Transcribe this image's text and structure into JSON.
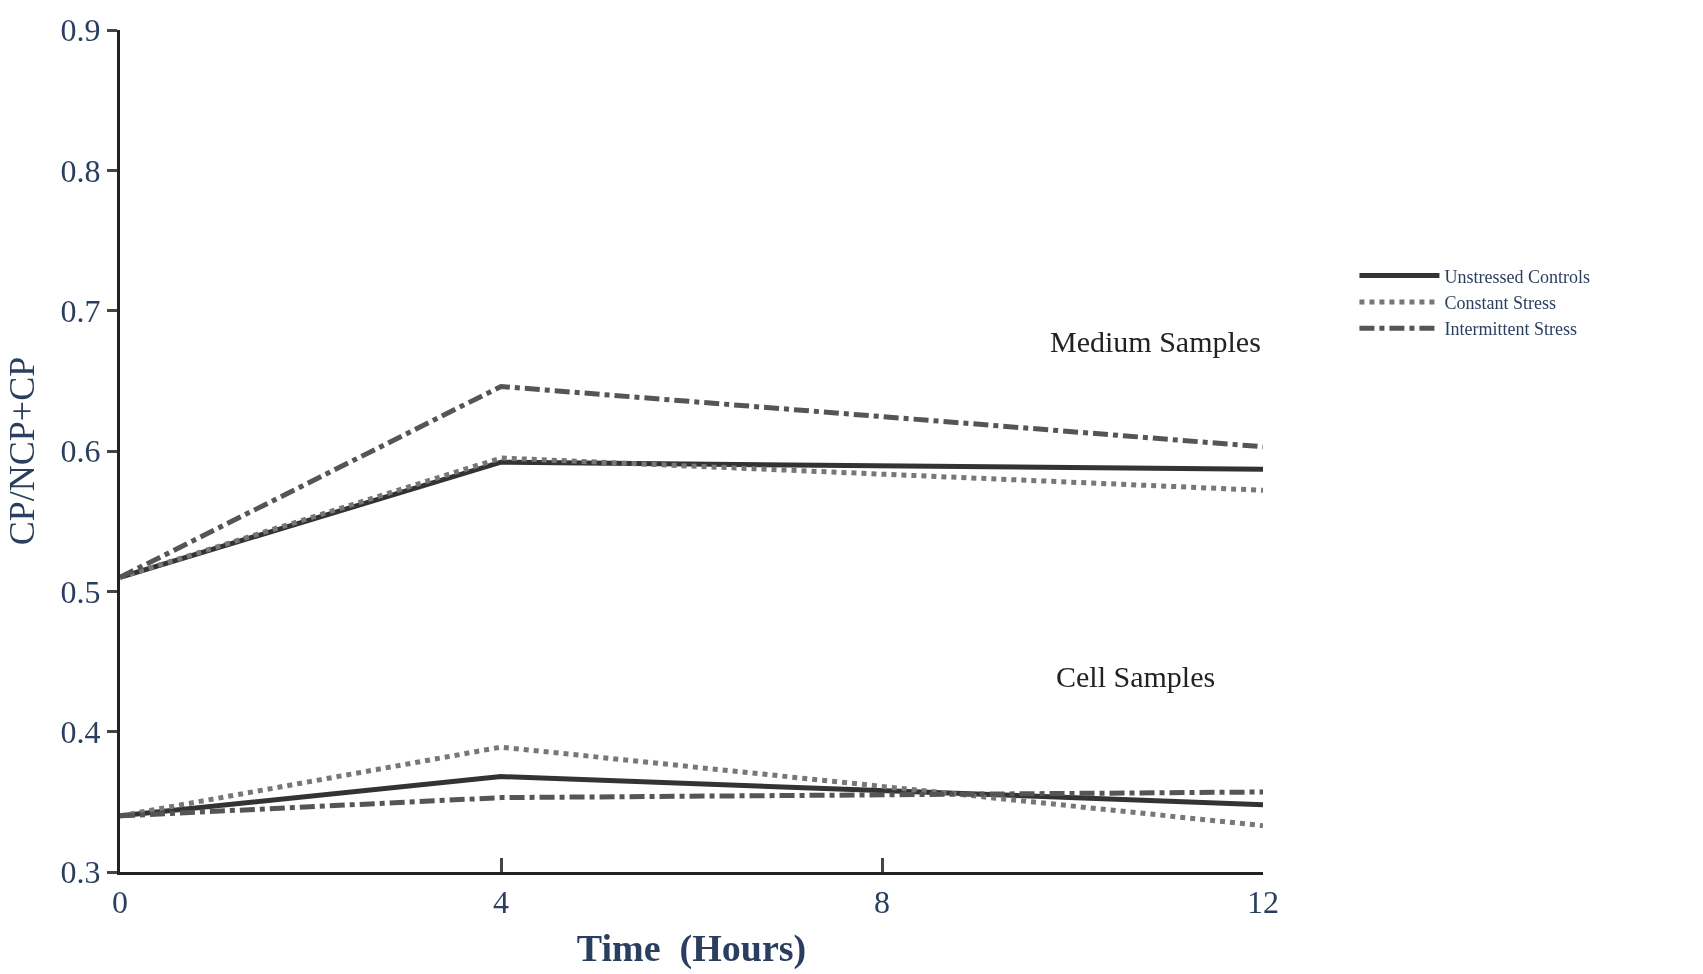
{
  "chart_data": {
    "type": "line",
    "xlabel": "Time  (Hours)",
    "ylabel": "CP/NCP+CP",
    "x": [
      0,
      4,
      12
    ],
    "series": [
      {
        "name": "Unstressed Controls",
        "color": "#333333",
        "line_style": "solid",
        "values": [
          0.51,
          0.592,
          0.587
        ]
      },
      {
        "name": "Constant Stress",
        "color": "#777777",
        "line_style": "dotted",
        "values": [
          0.51,
          0.595,
          0.572
        ]
      },
      {
        "name": "Intermittent Stress",
        "color": "#555555",
        "line_style": "dashed",
        "values": [
          0.51,
          0.646,
          0.603
        ]
      },
      {
        "color": "#333333",
        "line_style": "solid",
        "values": [
          0.34,
          0.368,
          0.348
        ]
      },
      {
        "color": "#777777",
        "line_style": "dotted",
        "values": [
          0.34,
          0.389,
          0.333
        ]
      },
      {
        "color": "#555555",
        "line_style": "dashed",
        "values": [
          0.34,
          0.353,
          0.357
        ]
      }
    ],
    "annotations": [
      "Medium Samples",
      "Cell Samples"
    ],
    "xlim": [
      0,
      12
    ],
    "xticks": [
      0,
      4,
      8,
      12
    ],
    "ylim": [
      0.3,
      0.9
    ],
    "yticks": [
      0.3,
      0.4,
      0.5,
      0.6,
      0.7,
      0.8,
      0.9
    ],
    "legend": "right",
    "marker": "none"
  }
}
